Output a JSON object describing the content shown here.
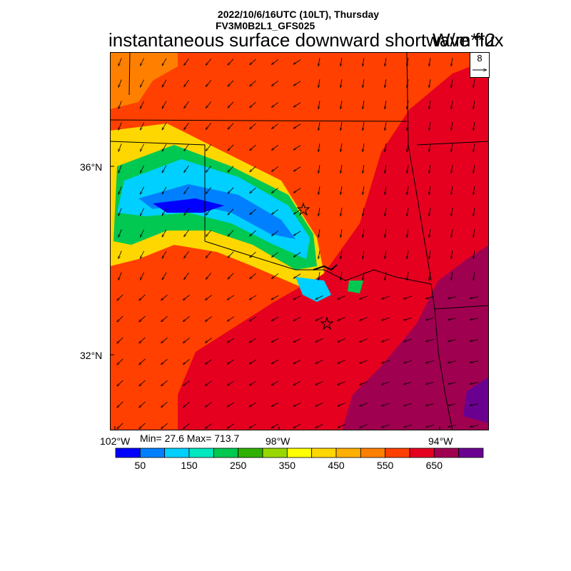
{
  "header": {
    "datetime": "2022/10/6/16UTC (10LT), Thursday",
    "model": "FV3M0B2L1_GFS025",
    "variable": "instantaneous surface downward shortwave flux",
    "units": "W/m**2"
  },
  "reference_vector": {
    "label": "8"
  },
  "stats": {
    "text": "Min= 27.6 Max= 713.7",
    "min": 27.6,
    "max": 713.7
  },
  "axes": {
    "lat_labels": [
      "36°N",
      "32°N"
    ],
    "lon_labels": [
      "102°W",
      "98°W",
      "94°W"
    ]
  },
  "colorbar": {
    "colors": [
      "#0000ff",
      "#0080ff",
      "#00d0ff",
      "#00e8c0",
      "#00c850",
      "#30b000",
      "#98d800",
      "#ffff00",
      "#ffd700",
      "#ffb000",
      "#ff8000",
      "#ff4000",
      "#e60020",
      "#a00050",
      "#6a0090"
    ],
    "labels": [
      "50",
      "150",
      "250",
      "350",
      "450",
      "550",
      "650"
    ]
  },
  "map": {
    "region": "Oklahoma / North Texas",
    "markers": [
      "star-marker",
      "star-marker"
    ],
    "fill_colors": {
      "background": "#ff4000",
      "high": "#e60020",
      "very_high": "#a00050",
      "max": "#6a0090",
      "moderate": "#ff8000"
    }
  }
}
